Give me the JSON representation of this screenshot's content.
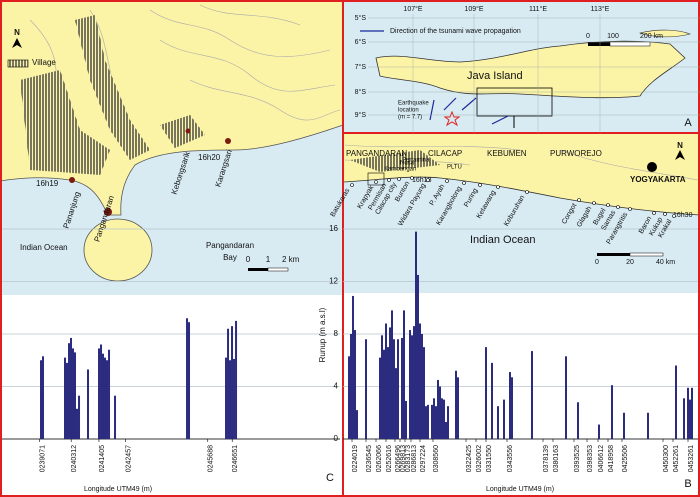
{
  "panel_c": {
    "letter": "C",
    "north": "N",
    "legend": "Village",
    "labels": [
      "Kebongsarik",
      "Karangsari",
      "Pananjung",
      "Pangandaran",
      "16h20",
      "16h19",
      "Indian Ocean"
    ],
    "bay_lines": [
      "Pangandaran",
      "Bay"
    ],
    "scale_labels": [
      "0",
      "1",
      "2 km"
    ]
  },
  "panel_a": {
    "letter": "A",
    "lat_labels": [
      "5°S",
      "6°S",
      "7°S",
      "8°S",
      "9°S"
    ],
    "lon_labels": [
      "107°E",
      "109°E",
      "111°E",
      "113°E"
    ],
    "legend": "Direction of the tsunami wave propagation",
    "island": "Java Island",
    "epicenter_lines": [
      "Earthquake",
      "location",
      "(m = 7.7)"
    ],
    "scale_labels": [
      "0",
      "100",
      "200 km"
    ]
  },
  "panel_b": {
    "letter": "B",
    "north": "N",
    "regions": [
      "PANGANDARAN",
      "CILACAP",
      "KEBUMEN",
      "PURWOREJO",
      "YOGYAKARTA"
    ],
    "places": [
      "Nusa",
      "Kambangan",
      "Pertamina",
      "PLTU",
      "16h18",
      "16h30",
      "Indian Ocean"
    ],
    "beaches": [
      "Batukaras",
      "Krapyak",
      "Permisan",
      "Cilacap city",
      "Bunton",
      "Widara Payung",
      "P. Ayah",
      "Karangbolong",
      "Puring",
      "Ketawang",
      "Keburuhan",
      "Congot",
      "Glagah",
      "Bugel",
      "Samas",
      "Parangtritis",
      "Baron",
      "Kukup",
      "Krakal"
    ],
    "scale_labels": [
      "0",
      "20",
      "40 km"
    ]
  },
  "chart_data": [
    {
      "type": "bar",
      "x_label": "Longitude UTM49 (m)",
      "color": "#2b2b80",
      "grid": true,
      "xlim": [
        238100,
        250500
      ],
      "ylim": [
        0,
        16
      ],
      "xticks": [
        {
          "value": 239071,
          "label": "0239071"
        },
        {
          "value": 240312,
          "label": "0240312"
        },
        {
          "value": 241405,
          "label": "0241405"
        },
        {
          "value": 242457,
          "label": "0242457"
        },
        {
          "value": 245688,
          "label": "0245688"
        },
        {
          "value": 246651,
          "label": "0246651"
        }
      ],
      "x": [
        239124,
        239202,
        240068,
        240147,
        240226,
        240305,
        240383,
        240462,
        240541,
        240620,
        240974,
        241407,
        241486,
        241564,
        241643,
        241722,
        241801,
        242037,
        244872,
        244950,
        246407,
        246486,
        246564,
        246643,
        246722,
        246801
      ],
      "values": [
        6.0,
        6.3,
        6.2,
        5.8,
        7.3,
        7.7,
        6.9,
        6.6,
        2.3,
        3.3,
        5.3,
        6.9,
        7.2,
        6.5,
        6.2,
        6.0,
        6.8,
        3.3,
        9.2,
        8.9,
        6.2,
        8.4,
        6.0,
        8.6,
        6.1,
        9.0
      ]
    },
    {
      "type": "bar",
      "x_label": "Longitude UTM49 (m)",
      "y_label": "Runup (m a.s.l)",
      "color": "#2b2b80",
      "grid": true,
      "xlim": [
        220000,
        460000
      ],
      "ylim": [
        0,
        16
      ],
      "yticks": [
        0,
        4,
        8,
        12,
        16
      ],
      "xticks": [
        {
          "value": 224800,
          "label": "0224019"
        },
        {
          "value": 234400,
          "label": "0236545"
        },
        {
          "value": 241257,
          "label": "0262066"
        },
        {
          "value": 248114,
          "label": "0252616"
        },
        {
          "value": 254286,
          "label": "0266496"
        },
        {
          "value": 257714,
          "label": "0269813"
        },
        {
          "value": 261143,
          "label": "0283173"
        },
        {
          "value": 265257,
          "label": "0286813"
        },
        {
          "value": 271429,
          "label": "0297224"
        },
        {
          "value": 280343,
          "label": "0308560"
        },
        {
          "value": 302971,
          "label": "0322425"
        },
        {
          "value": 309829,
          "label": "0326002"
        },
        {
          "value": 316686,
          "label": "0331550"
        },
        {
          "value": 331086,
          "label": "0343556"
        },
        {
          "value": 355771,
          "label": "0378139"
        },
        {
          "value": 362629,
          "label": "0380163"
        },
        {
          "value": 377029,
          "label": "0393525"
        },
        {
          "value": 385943,
          "label": "0398353"
        },
        {
          "value": 393486,
          "label": "0406612"
        },
        {
          "value": 400343,
          "label": "0418958"
        },
        {
          "value": 409943,
          "label": "0425506"
        },
        {
          "value": 438057,
          "label": "0450300"
        },
        {
          "value": 444914,
          "label": "0452261"
        },
        {
          "value": 455200,
          "label": "0453261"
        }
      ],
      "x": [
        222743,
        224114,
        225486,
        226857,
        228228,
        234400,
        244000,
        245371,
        246743,
        248114,
        249486,
        250857,
        252228,
        253600,
        254971,
        256343,
        259086,
        260457,
        261828,
        264571,
        265943,
        267314,
        268686,
        270057,
        271429,
        272800,
        274171,
        275543,
        276914,
        279657,
        281029,
        282400,
        283771,
        285143,
        286514,
        287886,
        289257,
        290629,
        296114,
        297486,
        316686,
        320800,
        324914,
        329029,
        333143,
        334514,
        348229,
        371543,
        379771,
        394171,
        403086,
        411314,
        427771,
        446971,
        452457,
        455200,
        456571,
        457943
      ],
      "values": [
        6.3,
        8.0,
        10.9,
        8.3,
        2.2,
        7.6,
        6.2,
        7.9,
        6.8,
        8.8,
        7.0,
        8.5,
        9.8,
        7.6,
        5.4,
        7.6,
        7.7,
        9.8,
        2.9,
        8.3,
        7.9,
        8.6,
        15.8,
        12.5,
        8.8,
        8.0,
        7.0,
        2.5,
        2.6,
        2.6,
        3.1,
        2.5,
        4.5,
        4.0,
        3.1,
        3.0,
        1.3,
        2.5,
        5.2,
        4.7,
        7.0,
        5.8,
        2.5,
        3.0,
        5.1,
        4.7,
        6.7,
        6.3,
        2.8,
        1.1,
        4.1,
        2.0,
        2.0,
        5.6,
        3.1,
        3.9,
        3.0,
        3.9
      ]
    }
  ]
}
